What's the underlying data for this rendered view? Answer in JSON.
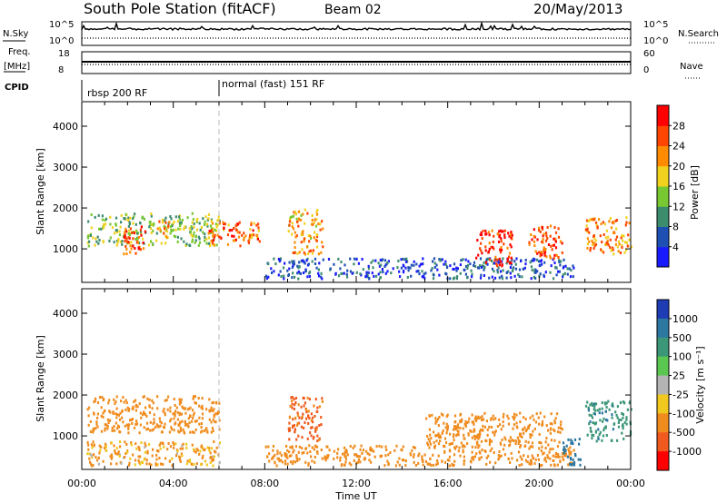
{
  "header": {
    "station": "South Pole Station (fitACF)",
    "beam": "Beam 02",
    "date": "20/May/2013"
  },
  "top_panels": {
    "nsky_label": "N.Sky",
    "nsky_ticks": [
      "10^5",
      "10^0"
    ],
    "nsearch_label": "N.Search",
    "freq_label_1": "Freq.",
    "freq_label_2": "[MHz]",
    "freq_ticks": [
      "18",
      "8"
    ],
    "nave_ticks": [
      "60",
      "0"
    ],
    "nave_label": "Nave",
    "cpid_label": "CPID",
    "cpid_modes": [
      "rbsp 200 RF",
      "normal (fast) 151 RF"
    ]
  },
  "axes": {
    "ylabel": "Slant Range [km]",
    "y_ticks": [
      "1000",
      "2000",
      "3000",
      "4000"
    ],
    "x_ticks": [
      "00:00",
      "04:00",
      "08:00",
      "12:00",
      "16:00",
      "20:00",
      "00:00"
    ],
    "xlabel": "Time UT"
  },
  "power_colorbar": {
    "label": "Power [dB]",
    "ticks": [
      "4",
      "8",
      "12",
      "16",
      "20",
      "24",
      "28"
    ],
    "colors": [
      "#1a1aff",
      "#1e50b4",
      "#3c8c6e",
      "#78c832",
      "#f0d21e",
      "#ff8c00",
      "#ff4600",
      "#ff0000"
    ]
  },
  "velocity_colorbar": {
    "label": "Velocity [m s⁻¹]",
    "ticks": [
      "1000",
      "500",
      "100",
      "25",
      "-25",
      "-100",
      "-500",
      "-1000"
    ],
    "colors": [
      "#1e3cb4",
      "#2d78a0",
      "#3c9678",
      "#5ac850",
      "#b4b4b4",
      "#f0c81e",
      "#f08c1e",
      "#f05a1e",
      "#ff0000"
    ]
  },
  "chart_data": [
    {
      "type": "heatmap",
      "title": "Power",
      "xlabel": "Time UT",
      "ylabel": "Slant Range [km]",
      "xlim": [
        "00:00",
        "24:00"
      ],
      "ylim": [
        180,
        4600
      ],
      "colorbar_label": "Power [dB]",
      "colorbar_range": [
        0,
        32
      ],
      "regions": [
        {
          "t0": 0.2,
          "t1": 6.0,
          "r0": 1100,
          "r1": 1900,
          "value": 14
        },
        {
          "t0": 1.8,
          "t1": 2.8,
          "r0": 900,
          "r1": 1600,
          "value": 27
        },
        {
          "t0": 3.2,
          "t1": 3.8,
          "r0": 1300,
          "r1": 1700,
          "value": 22
        },
        {
          "t0": 5.5,
          "t1": 7.8,
          "r0": 1100,
          "r1": 1700,
          "value": 25
        },
        {
          "t0": 9.0,
          "t1": 10.5,
          "r0": 900,
          "r1": 2000,
          "value": 21
        },
        {
          "t0": 8.0,
          "t1": 21.5,
          "r0": 300,
          "r1": 800,
          "value": 6
        },
        {
          "t0": 17.2,
          "t1": 18.8,
          "r0": 600,
          "r1": 1500,
          "value": 29
        },
        {
          "t0": 19.5,
          "t1": 21.0,
          "r0": 800,
          "r1": 1600,
          "value": 26
        },
        {
          "t0": 22.0,
          "t1": 24.0,
          "r0": 900,
          "r1": 1800,
          "value": 22
        }
      ]
    },
    {
      "type": "heatmap",
      "title": "Velocity",
      "xlabel": "Time UT",
      "ylabel": "Slant Range [km]",
      "xlim": [
        "00:00",
        "24:00"
      ],
      "ylim": [
        180,
        4600
      ],
      "colorbar_label": "Velocity [m s⁻¹]",
      "colorbar_range": [
        -1000,
        1000
      ],
      "regions": [
        {
          "t0": 0.2,
          "t1": 6.0,
          "r0": 1100,
          "r1": 2000,
          "value": -300
        },
        {
          "t0": 0.2,
          "t1": 6.0,
          "r0": 300,
          "r1": 900,
          "value": -150
        },
        {
          "t0": 9.0,
          "t1": 10.5,
          "r0": 900,
          "r1": 2000,
          "value": -600
        },
        {
          "t0": 8.0,
          "t1": 21.5,
          "r0": 300,
          "r1": 800,
          "value": -250
        },
        {
          "t0": 15.0,
          "t1": 21.0,
          "r0": 800,
          "r1": 1600,
          "value": -350
        },
        {
          "t0": 21.0,
          "t1": 21.8,
          "r0": 300,
          "r1": 1000,
          "value": 700
        },
        {
          "t0": 22.0,
          "t1": 24.0,
          "r0": 900,
          "r1": 1900,
          "value": 400
        }
      ]
    }
  ]
}
